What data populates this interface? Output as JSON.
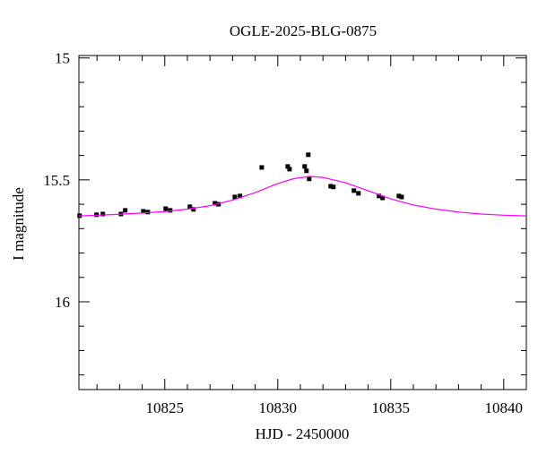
{
  "chart_data": {
    "type": "scatter",
    "title": "OGLE-2025-BLG-0875",
    "xlabel": "HJD - 2450000",
    "ylabel": "I magnitude",
    "xlim": [
      10821.2,
      10841
    ],
    "ylim": [
      14.99,
      16.36
    ],
    "y_inverted": true,
    "xticks": [
      10825,
      10830,
      10835,
      10840
    ],
    "yticks": [
      15,
      15.5,
      16
    ],
    "xminor": [
      10822,
      10823,
      10824,
      10826,
      10827,
      10828,
      10829,
      10831,
      10832,
      10833,
      10834,
      10836,
      10837,
      10838,
      10839
    ],
    "yminor": [
      15.1,
      15.2,
      15.3,
      15.4,
      15.6,
      15.7,
      15.8,
      15.9,
      16.1,
      16.2,
      16.3
    ],
    "series": [
      {
        "type": "scatter",
        "color": "#000000",
        "x": [
          10821.23,
          10821.98,
          10822.26,
          10823.06,
          10823.25,
          10824.05,
          10824.25,
          10825.04,
          10825.24,
          10826.11,
          10826.27,
          10827.22,
          10827.38,
          10828.1,
          10828.33,
          10829.29,
          10830.44,
          10830.52,
          10831.19,
          10831.27,
          10831.35,
          10831.39,
          10832.34,
          10832.46,
          10833.37,
          10833.57,
          10834.48,
          10834.64,
          10835.36,
          10835.48
        ],
        "values": [
          15.647,
          15.643,
          15.64,
          15.64,
          15.625,
          15.629,
          15.632,
          15.618,
          15.625,
          15.61,
          15.621,
          15.596,
          15.6,
          15.57,
          15.566,
          15.449,
          15.445,
          15.456,
          15.445,
          15.463,
          15.397,
          15.496,
          15.526,
          15.529,
          15.544,
          15.555,
          15.566,
          15.574,
          15.566,
          15.57
        ]
      },
      {
        "type": "line",
        "color": "#ff00ff",
        "x": [
          10821.2,
          10822,
          10823,
          10824,
          10825,
          10826,
          10827,
          10828,
          10829,
          10830,
          10830.7,
          10831.4,
          10832,
          10833,
          10834,
          10835,
          10836,
          10837,
          10838,
          10839,
          10840,
          10841
        ],
        "values": [
          15.648,
          15.645,
          15.641,
          15.636,
          15.63,
          15.62,
          15.606,
          15.583,
          15.552,
          15.515,
          15.495,
          15.486,
          15.49,
          15.512,
          15.545,
          15.578,
          15.603,
          15.62,
          15.632,
          15.64,
          15.645,
          15.648
        ]
      }
    ]
  }
}
